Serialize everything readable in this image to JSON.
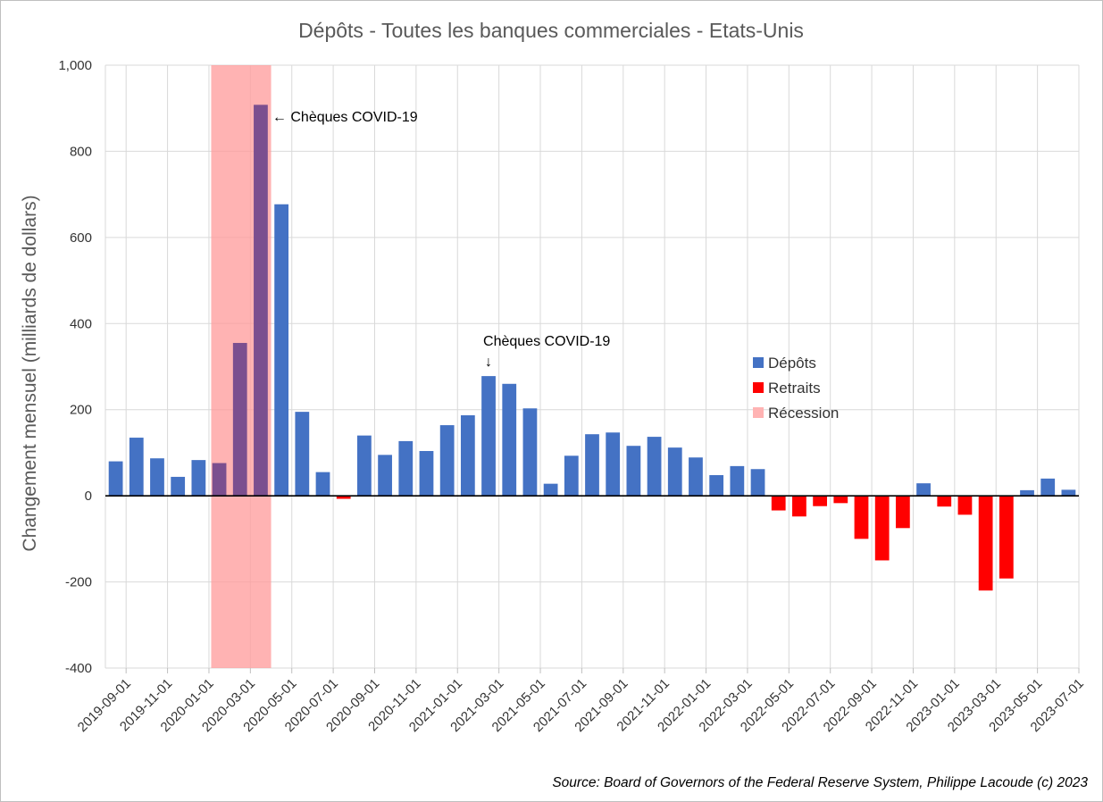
{
  "chart_data": {
    "type": "bar",
    "title": "Dépôts - Toutes les banques commerciales - Etats-Unis",
    "ylabel": "Changement mensuel (milliards de dollars)",
    "xlabel": "",
    "ylim": [
      -400,
      1000
    ],
    "yticks": [
      -400,
      -200,
      0,
      200,
      400,
      600,
      800,
      1000
    ],
    "ytick_labels": [
      "-400",
      "-200",
      "0",
      "200",
      "400",
      "600",
      "800",
      "1,000"
    ],
    "grid": true,
    "x_tick_labels": [
      "2019-09-01",
      "2019-11-01",
      "2020-01-01",
      "2020-03-01",
      "2020-05-01",
      "2020-07-01",
      "2020-09-01",
      "2020-11-01",
      "2021-01-01",
      "2021-03-01",
      "2021-05-01",
      "2021-07-01",
      "2021-09-01",
      "2021-11-01",
      "2022-01-01",
      "2022-03-01",
      "2022-05-01",
      "2022-07-01",
      "2022-09-01",
      "2022-11-01",
      "2023-01-01",
      "2023-03-01",
      "2023-05-01",
      "2023-07-01"
    ],
    "categories": [
      "2019-09-01",
      "2019-10-01",
      "2019-11-01",
      "2019-12-01",
      "2020-01-01",
      "2020-02-01",
      "2020-03-01",
      "2020-04-01",
      "2020-05-01",
      "2020-06-01",
      "2020-07-01",
      "2020-08-01",
      "2020-09-01",
      "2020-10-01",
      "2020-11-01",
      "2020-12-01",
      "2021-01-01",
      "2021-02-01",
      "2021-03-01",
      "2021-04-01",
      "2021-05-01",
      "2021-06-01",
      "2021-07-01",
      "2021-08-01",
      "2021-09-01",
      "2021-10-01",
      "2021-11-01",
      "2021-12-01",
      "2022-01-01",
      "2022-02-01",
      "2022-03-01",
      "2022-04-01",
      "2022-05-01",
      "2022-06-01",
      "2022-07-01",
      "2022-08-01",
      "2022-09-01",
      "2022-10-01",
      "2022-11-01",
      "2022-12-01",
      "2023-01-01",
      "2023-02-01",
      "2023-03-01",
      "2023-04-01",
      "2023-05-01",
      "2023-06-01",
      "2023-07-01"
    ],
    "values": [
      80,
      135,
      87,
      44,
      83,
      76,
      355,
      908,
      677,
      195,
      55,
      -7,
      140,
      95,
      127,
      104,
      164,
      187,
      278,
      260,
      203,
      28,
      93,
      143,
      147,
      116,
      137,
      112,
      89,
      48,
      69,
      62,
      -34,
      -48,
      -24,
      -17,
      -100,
      -150,
      -75,
      29,
      -25,
      -44,
      -220,
      -192,
      13,
      40,
      14
    ],
    "legend": {
      "position": "right",
      "items": [
        {
          "name": "Dépôts",
          "color": "#4472c4"
        },
        {
          "name": "Retraits",
          "color": "#ff0000"
        },
        {
          "name": "Récession",
          "color": "#ffb3b3"
        }
      ]
    },
    "recession": {
      "start": "2020-02-01",
      "end": "2020-04-01"
    },
    "annotations": [
      {
        "text": "← Chèques COVID-19",
        "category": "2020-04-01"
      },
      {
        "text": "Chèques COVID-19",
        "arrow": "↓",
        "category": "2021-03-01"
      }
    ],
    "colors": {
      "positive": "#4472c4",
      "negative": "#ff0000",
      "recession": "#ff9999",
      "recession_overlap": "#7b4f8f",
      "grid": "#d9d9d9",
      "zero_line": "#000000"
    }
  },
  "source_note": "Source: Board of Governors of the Federal Reserve System, Philippe Lacoude (c) 2023"
}
